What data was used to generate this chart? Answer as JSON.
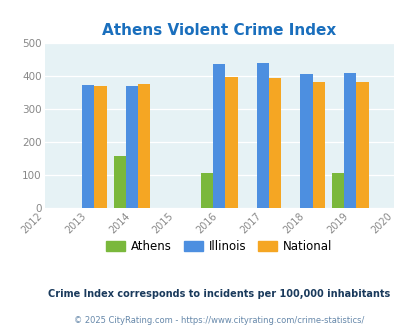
{
  "title": "Athens Violent Crime Index",
  "title_color": "#1a6fbd",
  "years": [
    2012,
    2013,
    2014,
    2015,
    2016,
    2017,
    2018,
    2019,
    2020
  ],
  "bar_years": [
    2013,
    2014,
    2016,
    2017,
    2018,
    2019
  ],
  "athens": [
    0,
    157,
    105,
    0,
    0,
    105
  ],
  "illinois": [
    373,
    370,
    437,
    438,
    405,
    408
  ],
  "national": [
    368,
    376,
    397,
    394,
    381,
    381
  ],
  "athens_color": "#7ab83c",
  "illinois_color": "#4d8fe0",
  "national_color": "#f5a623",
  "bg_color": "#e6f2f5",
  "ylabel_values": [
    0,
    100,
    200,
    300,
    400,
    500
  ],
  "ylim": [
    0,
    500
  ],
  "bar_width": 0.28,
  "legend_labels": [
    "Athens",
    "Illinois",
    "National"
  ],
  "footnote1": "Crime Index corresponds to incidents per 100,000 inhabitants",
  "footnote2": "© 2025 CityRating.com - https://www.cityrating.com/crime-statistics/",
  "footnote1_color": "#1a3a5c",
  "footnote2_color": "#6688aa"
}
